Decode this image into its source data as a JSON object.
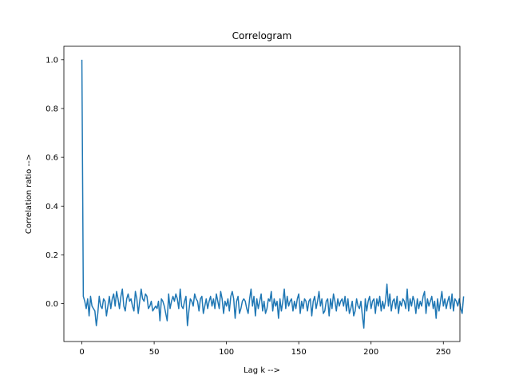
{
  "chart_data": {
    "type": "line",
    "title": "Correlogram",
    "xlabel": "Lag k -->",
    "ylabel": "Correlation ratio -->",
    "xlim": [
      -12.45,
      261.45
    ],
    "ylim": [
      -0.155,
      1.055
    ],
    "xticks": [
      0,
      50,
      100,
      150,
      200,
      250
    ],
    "yticks": [
      0.0,
      0.2,
      0.4,
      0.6,
      0.8,
      1.0
    ],
    "xtick_labels": [
      "0",
      "50",
      "100",
      "150",
      "200",
      "250"
    ],
    "ytick_labels": [
      "0.0",
      "0.2",
      "0.4",
      "0.6",
      "0.8",
      "1.0"
    ],
    "grid": false,
    "series": [
      {
        "color": "#1f77b4",
        "x_start": 0,
        "x_step": 1,
        "y": [
          1.0,
          0.03,
          0.01,
          -0.02,
          0.02,
          -0.05,
          0.03,
          -0.01,
          -0.02,
          -0.03,
          -0.09,
          -0.04,
          0.03,
          -0.01,
          -0.02,
          0.02,
          0.01,
          -0.05,
          -0.01,
          0.03,
          -0.02,
          0.02,
          0.04,
          -0.01,
          0.05,
          0.02,
          -0.02,
          0.03,
          0.06,
          -0.01,
          -0.03,
          0.02,
          0.04,
          0.01,
          0.02,
          -0.01,
          -0.03,
          0.05,
          0.02,
          -0.04,
          0.01,
          0.06,
          0.02,
          0.01,
          0.04,
          0.03,
          -0.02,
          -0.01,
          0.01,
          -0.03,
          -0.02,
          -0.01,
          -0.02,
          0.01,
          -0.07,
          0.02,
          0.01,
          -0.01,
          -0.04,
          -0.07,
          0.04,
          -0.02,
          0.01,
          0.03,
          0.01,
          0.04,
          0.02,
          -0.02,
          0.06,
          -0.01,
          -0.02,
          0.01,
          0.03,
          -0.09,
          -0.03,
          0.02,
          0.01,
          -0.01,
          0.04,
          0.02,
          0.01,
          -0.03,
          0.02,
          0.03,
          -0.04,
          -0.01,
          0.02,
          -0.02,
          0.01,
          0.03,
          -0.01,
          0.02,
          -0.02,
          0.04,
          0.01,
          -0.02,
          0.05,
          0.02,
          -0.04,
          0.01,
          -0.01,
          0.02,
          -0.03,
          0.03,
          0.05,
          0.02,
          -0.06,
          0.01,
          0.03,
          -0.04,
          -0.02,
          0.01,
          0.02,
          0.01,
          -0.02,
          -0.04,
          0.02,
          0.06,
          -0.01,
          0.03,
          -0.05,
          0.02,
          -0.02,
          0.01,
          0.04,
          -0.03,
          0.01,
          -0.04,
          -0.02,
          0.02,
          0.01,
          0.05,
          -0.03,
          0.02,
          -0.01,
          0.01,
          -0.06,
          0.02,
          -0.03,
          0.01,
          0.06,
          -0.02,
          0.03,
          -0.01,
          0.01,
          0.02,
          -0.03,
          0.01,
          -0.02,
          0.02,
          0.04,
          -0.04,
          0.01,
          -0.02,
          0.02,
          0.01,
          -0.03,
          0.01,
          0.02,
          -0.05,
          0.01,
          0.03,
          -0.02,
          0.01,
          0.05,
          -0.01,
          0.02,
          -0.04,
          -0.03,
          0.01,
          0.02,
          -0.05,
          0.02,
          -0.02,
          0.04,
          0.01,
          -0.03,
          0.02,
          -0.01,
          0.01,
          0.02,
          -0.01,
          0.03,
          -0.03,
          0.02,
          -0.04,
          -0.02,
          0.01,
          -0.05,
          -0.03,
          0.02,
          -0.01,
          -0.02,
          0.01,
          -0.05,
          -0.1,
          0.02,
          -0.03,
          0.01,
          0.03,
          -0.02,
          0.01,
          0.02,
          -0.04,
          0.02,
          -0.01,
          0.03,
          -0.03,
          0.01,
          -0.02,
          0.01,
          0.08,
          -0.01,
          0.04,
          -0.03,
          0.01,
          0.02,
          -0.02,
          0.03,
          -0.04,
          0.01,
          -0.01,
          0.02,
          0.01,
          -0.02,
          0.06,
          -0.03,
          0.02,
          -0.01,
          0.03,
          0.01,
          -0.04,
          0.02,
          -0.02,
          0.01,
          -0.01,
          0.03,
          0.05,
          -0.04,
          0.02,
          -0.01,
          0.01,
          0.03,
          -0.02,
          0.01,
          -0.06,
          0.02,
          -0.03,
          0.01,
          0.05,
          -0.01,
          0.02,
          -0.02,
          0.01,
          0.03,
          -0.02,
          0.04,
          -0.03,
          0.02,
          0.01,
          -0.01,
          0.02,
          -0.02,
          -0.04,
          0.03
        ]
      }
    ]
  }
}
